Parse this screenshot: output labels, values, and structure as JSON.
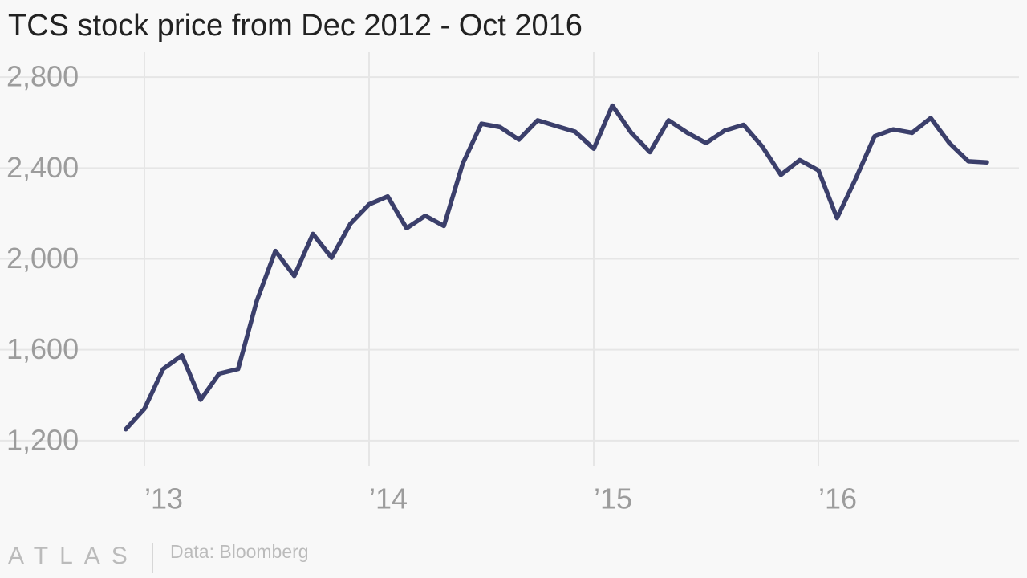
{
  "chart_data": {
    "type": "line",
    "title": "TCS stock price from Dec 2012 - Oct 2016",
    "source": "Data: Bloomberg",
    "brand": "ATLAS",
    "x": [
      2012.917,
      2013,
      2013.083,
      2013.167,
      2013.25,
      2013.333,
      2013.417,
      2013.5,
      2013.583,
      2013.667,
      2013.75,
      2013.833,
      2013.917,
      2014,
      2014.083,
      2014.167,
      2014.25,
      2014.333,
      2014.417,
      2014.5,
      2014.583,
      2014.667,
      2014.75,
      2014.833,
      2014.917,
      2015,
      2015.083,
      2015.167,
      2015.25,
      2015.333,
      2015.417,
      2015.5,
      2015.583,
      2015.667,
      2015.75,
      2015.833,
      2015.917,
      2016,
      2016.083,
      2016.167,
      2016.25,
      2016.333,
      2016.417,
      2016.5,
      2016.583,
      2016.667,
      2016.75
    ],
    "series": [
      {
        "name": "TCS",
        "color": "#3b3f6b",
        "values": [
          1250,
          1340,
          1515,
          1575,
          1380,
          1495,
          1515,
          1815,
          2035,
          1925,
          2110,
          2005,
          2155,
          2240,
          2275,
          2135,
          2190,
          2145,
          2420,
          2595,
          2580,
          2525,
          2610,
          2585,
          2560,
          2485,
          2675,
          2555,
          2470,
          2610,
          2555,
          2510,
          2565,
          2590,
          2495,
          2370,
          2435,
          2390,
          2180,
          2355,
          2540,
          2570,
          2555,
          2620,
          2510,
          2430,
          2425
        ]
      }
    ],
    "xlim": [
      2012.4,
      2016.9
    ],
    "xticks": [
      {
        "value": 2013,
        "label": "’13"
      },
      {
        "value": 2014,
        "label": "’14"
      },
      {
        "value": 2015,
        "label": "’15"
      },
      {
        "value": 2016,
        "label": "’16"
      }
    ],
    "ylim": [
      1090,
      2910
    ],
    "yticks": [
      {
        "value": 1200,
        "label": "1,200"
      },
      {
        "value": 1600,
        "label": "1,600"
      },
      {
        "value": 2000,
        "label": "2,000"
      },
      {
        "value": 2400,
        "label": "2,400"
      },
      {
        "value": 2800,
        "label": "2,800"
      }
    ],
    "grid": true
  }
}
